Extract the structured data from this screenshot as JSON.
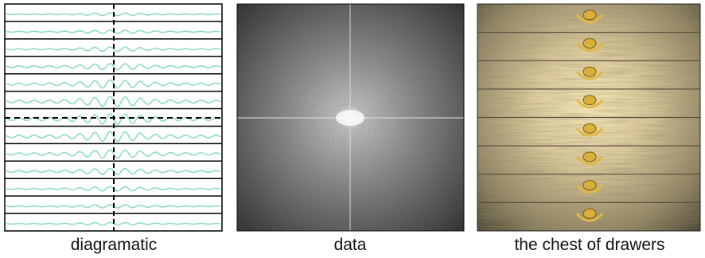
{
  "panels": [
    {
      "caption": "diagramatic"
    },
    {
      "caption": "data"
    },
    {
      "caption": "the chest of drawers"
    }
  ]
}
